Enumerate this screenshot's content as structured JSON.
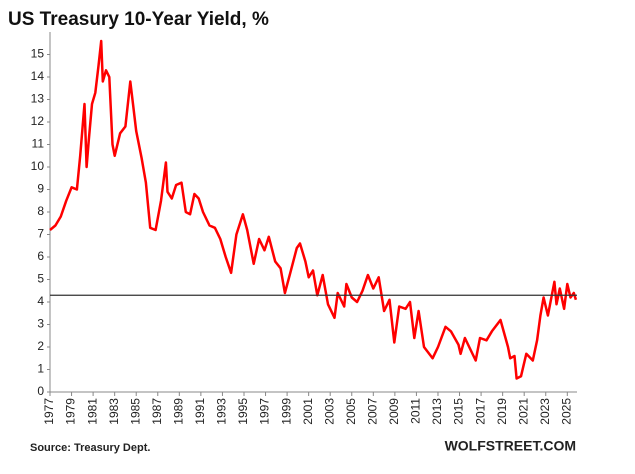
{
  "chart_data": {
    "type": "line",
    "title": "US Treasury 10-Year Yield, %",
    "source": "Source: Treasury Dept.",
    "brand": "WOLFSTREET.COM",
    "color": "#ff0000",
    "reference_line": 4.3,
    "reference_color": "#333333",
    "x": [
      1977.0,
      1977.5,
      1978.0,
      1978.5,
      1979.0,
      1979.5,
      1979.8,
      1980.2,
      1980.4,
      1980.6,
      1980.9,
      1981.2,
      1981.5,
      1981.75,
      1981.9,
      1982.2,
      1982.5,
      1982.8,
      1983.0,
      1983.5,
      1984.0,
      1984.45,
      1984.7,
      1985.0,
      1985.5,
      1985.9,
      1986.3,
      1986.8,
      1987.3,
      1987.75,
      1987.9,
      1988.3,
      1988.7,
      1989.2,
      1989.6,
      1990.0,
      1990.4,
      1990.8,
      1991.2,
      1991.8,
      1992.3,
      1992.8,
      1993.3,
      1993.8,
      1994.3,
      1994.9,
      1995.3,
      1995.9,
      1996.4,
      1996.9,
      1997.3,
      1997.9,
      1998.4,
      1998.8,
      1999.3,
      1999.9,
      2000.2,
      2000.7,
      2001.0,
      2001.4,
      2001.8,
      2002.3,
      2002.8,
      2003.4,
      2003.7,
      2004.3,
      2004.5,
      2005.0,
      2005.5,
      2006.0,
      2006.5,
      2007.0,
      2007.5,
      2008.0,
      2008.5,
      2008.95,
      2009.4,
      2010.0,
      2010.4,
      2010.8,
      2011.2,
      2011.7,
      2012.5,
      2013.0,
      2013.7,
      2014.2,
      2014.9,
      2015.1,
      2015.5,
      2016.5,
      2016.9,
      2017.5,
      2018.0,
      2018.8,
      2019.5,
      2019.7,
      2020.1,
      2020.3,
      2020.7,
      2021.2,
      2021.8,
      2022.2,
      2022.5,
      2022.8,
      2023.2,
      2023.8,
      2024.0,
      2024.3,
      2024.7,
      2025.0,
      2025.3,
      2025.6,
      2025.8
    ],
    "values": [
      7.2,
      7.4,
      7.8,
      8.5,
      9.1,
      9.0,
      10.5,
      12.8,
      10.0,
      11.2,
      12.8,
      13.3,
      14.5,
      15.6,
      13.8,
      14.3,
      14.0,
      11.0,
      10.5,
      11.5,
      11.8,
      13.8,
      12.8,
      11.6,
      10.4,
      9.3,
      7.3,
      7.2,
      8.5,
      10.2,
      8.9,
      8.6,
      9.2,
      9.3,
      8.0,
      7.9,
      8.8,
      8.6,
      8.0,
      7.4,
      7.3,
      6.8,
      6.0,
      5.3,
      7.0,
      7.9,
      7.2,
      5.7,
      6.8,
      6.3,
      6.9,
      5.8,
      5.5,
      4.4,
      5.3,
      6.4,
      6.6,
      5.8,
      5.1,
      5.4,
      4.3,
      5.2,
      3.9,
      3.3,
      4.4,
      3.8,
      4.8,
      4.2,
      4.0,
      4.5,
      5.2,
      4.6,
      5.1,
      3.6,
      4.1,
      2.2,
      3.8,
      3.7,
      4.0,
      2.4,
      3.6,
      2.0,
      1.5,
      2.0,
      2.9,
      2.7,
      2.1,
      1.7,
      2.4,
      1.4,
      2.4,
      2.3,
      2.7,
      3.2,
      2.0,
      1.5,
      1.6,
      0.6,
      0.7,
      1.7,
      1.4,
      2.3,
      3.4,
      4.2,
      3.4,
      4.9,
      3.9,
      4.6,
      3.7,
      4.8,
      4.2,
      4.4,
      4.1
    ],
    "xlim": [
      1977,
      2025.9
    ],
    "xticks": [
      1977,
      1979,
      1981,
      1983,
      1985,
      1987,
      1989,
      1991,
      1993,
      1995,
      1997,
      1999,
      2001,
      2003,
      2005,
      2007,
      2009,
      2011,
      2013,
      2015,
      2017,
      2019,
      2021,
      2023,
      2025
    ],
    "ylim": [
      0,
      16
    ],
    "yticks": [
      0,
      1,
      2,
      3,
      4,
      5,
      6,
      7,
      8,
      9,
      10,
      11,
      12,
      13,
      14,
      15
    ]
  }
}
